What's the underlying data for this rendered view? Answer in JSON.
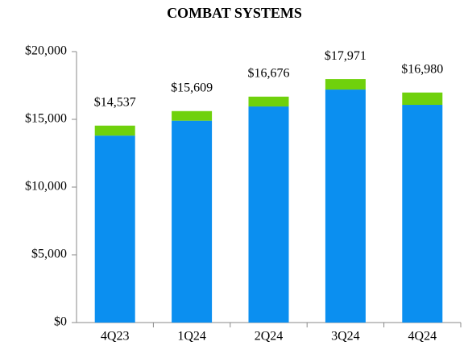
{
  "chart_data": {
    "type": "stacked_bar",
    "title": "COMBAT SYSTEMS",
    "categories": [
      "4Q23",
      "1Q24",
      "2Q24",
      "3Q24",
      "4Q24"
    ],
    "series": [
      {
        "color": "#0b8ff0",
        "values": [
          13800,
          14900,
          15950,
          17200,
          16070
        ]
      },
      {
        "color": "#6fd10c",
        "values": [
          737,
          709,
          726,
          771,
          910
        ]
      }
    ],
    "totals": [
      14537,
      15609,
      16676,
      17971,
      16980
    ],
    "total_labels": [
      "$14,537",
      "$15,609",
      "$16,676",
      "$17,971",
      "$16,980"
    ],
    "ylim": [
      0,
      20000
    ],
    "yticks": [
      {
        "value": 0,
        "label": "$0"
      },
      {
        "value": 5000,
        "label": "$5,000"
      },
      {
        "value": 10000,
        "label": "$10,000"
      },
      {
        "value": 15000,
        "label": "$15,000"
      },
      {
        "value": 20000,
        "label": "$20,000"
      }
    ],
    "grid": false
  }
}
